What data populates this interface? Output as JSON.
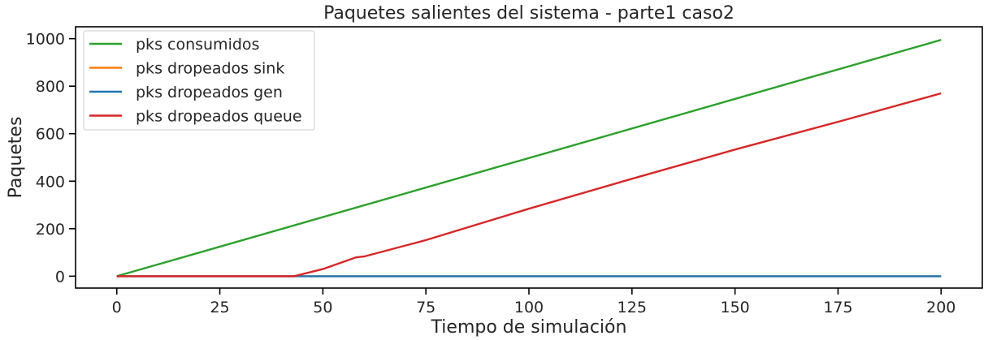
{
  "chart_data": {
    "type": "line",
    "title": "Paquetes salientes del sistema - parte1 caso2",
    "xlabel": "Tiempo de simulación",
    "ylabel": "Paquetes",
    "xlim": [
      -10,
      210
    ],
    "ylim": [
      -50,
      1050
    ],
    "xticks": [
      0,
      25,
      50,
      75,
      100,
      125,
      150,
      175,
      200
    ],
    "yticks": [
      0,
      200,
      400,
      600,
      800,
      1000
    ],
    "grid": false,
    "legend_position": "top-left",
    "series": [
      {
        "name": "pks consumidos",
        "color": "#2ca02c",
        "x": [
          0,
          200
        ],
        "y": [
          0,
          995
        ]
      },
      {
        "name": "pks dropeados sink",
        "color": "#ff7f0e",
        "x": [
          0,
          200
        ],
        "y": [
          0,
          0
        ]
      },
      {
        "name": "pks dropeados gen",
        "color": "#1f77b4",
        "x": [
          0,
          200
        ],
        "y": [
          0,
          0
        ]
      },
      {
        "name": "pks dropeados queue",
        "color": "#d62728",
        "x": [
          0,
          43,
          50,
          58,
          60,
          75,
          100,
          125,
          150,
          175,
          200
        ],
        "y": [
          0,
          0,
          30,
          79,
          83,
          152,
          284,
          410,
          533,
          650,
          770
        ]
      }
    ]
  }
}
